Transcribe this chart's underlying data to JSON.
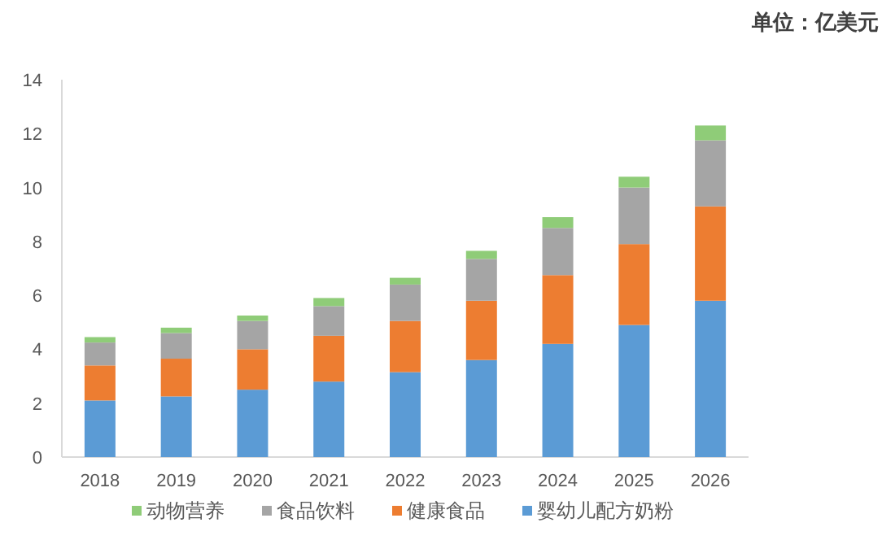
{
  "chart_data": {
    "type": "bar",
    "stacked": true,
    "categories": [
      "2018",
      "2019",
      "2020",
      "2021",
      "2022",
      "2023",
      "2024",
      "2025",
      "2026"
    ],
    "series": [
      {
        "name": "婴幼儿配方奶粉",
        "color": "#5b9bd5",
        "values": [
          2.1,
          2.25,
          2.5,
          2.8,
          3.15,
          3.6,
          4.2,
          4.9,
          5.8
        ]
      },
      {
        "name": "健康食品",
        "color": "#ed7d31",
        "values": [
          1.3,
          1.4,
          1.5,
          1.7,
          1.9,
          2.2,
          2.55,
          3.0,
          3.5
        ]
      },
      {
        "name": "食品饮料",
        "color": "#a5a5a5",
        "values": [
          0.85,
          0.95,
          1.05,
          1.1,
          1.35,
          1.55,
          1.75,
          2.1,
          2.45
        ]
      },
      {
        "name": "动物营养",
        "color": "#8fcc78",
        "values": [
          0.2,
          0.2,
          0.2,
          0.3,
          0.25,
          0.3,
          0.4,
          0.4,
          0.55
        ]
      }
    ],
    "ylim": [
      0,
      14
    ],
    "yticks": [
      0,
      2,
      4,
      6,
      8,
      10,
      12,
      14
    ],
    "legend": "bottom",
    "annotations": [
      "单位：亿美元"
    ]
  }
}
